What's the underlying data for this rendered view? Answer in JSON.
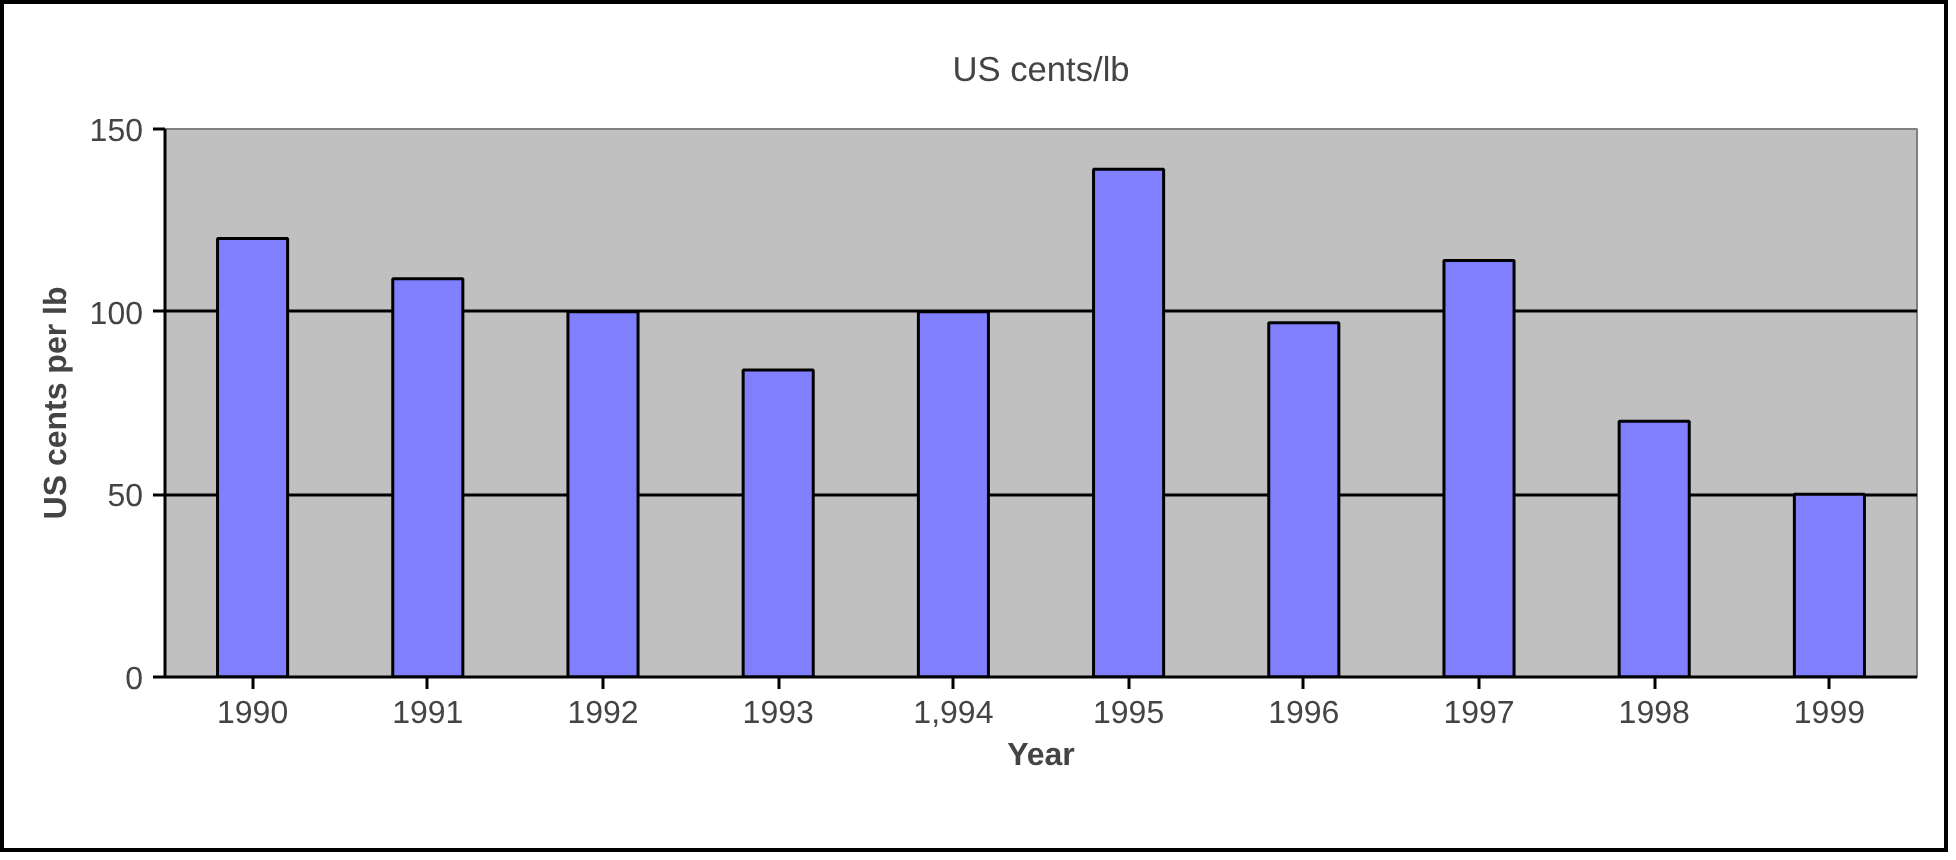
{
  "chart_data": {
    "type": "bar",
    "title": "US cents/lb",
    "xlabel": "Year",
    "ylabel": "US cents per lb",
    "categories": [
      "1990",
      "1991",
      "1992",
      "1993",
      "1,994",
      "1995",
      "1996",
      "1997",
      "1998",
      "1999"
    ],
    "values": [
      120,
      109,
      100,
      84,
      100,
      139,
      97,
      114,
      70,
      50
    ],
    "color": "#8080ff",
    "ylim": [
      0,
      150
    ],
    "yticks": [
      0,
      50,
      100,
      150
    ],
    "grid": "y"
  }
}
